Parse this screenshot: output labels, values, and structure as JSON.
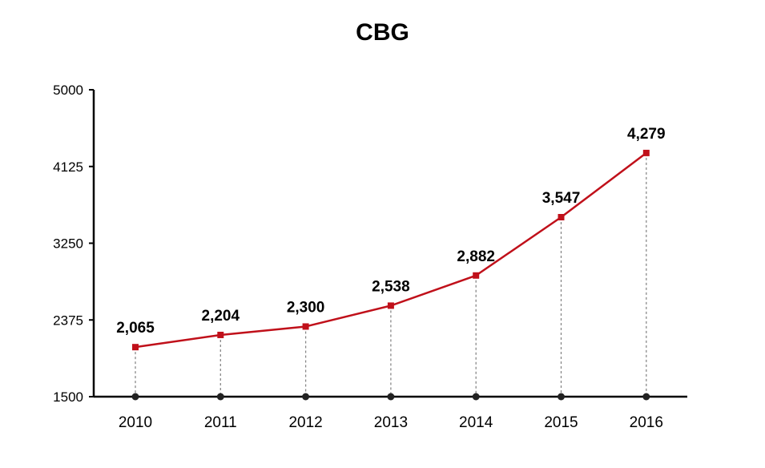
{
  "chart_data": {
    "type": "line",
    "title": "CBG",
    "xlabel": "",
    "ylabel": "",
    "categories": [
      "2010",
      "2011",
      "2012",
      "2013",
      "2014",
      "2015",
      "2016"
    ],
    "series": [
      {
        "values": [
          2065,
          2204,
          2300,
          2538,
          2882,
          3547,
          4279
        ],
        "data_labels": [
          "2,065",
          "2,204",
          "2,300",
          "2,538",
          "2,882",
          "3,547",
          "4,279"
        ]
      }
    ],
    "ylim": [
      1500,
      5000
    ],
    "y_ticks": [
      "5000",
      "4125",
      "3250",
      "2375",
      "1500"
    ],
    "grid": false,
    "legend": "none",
    "colors": {
      "line": "#c0101a",
      "marker": "#c0101a",
      "axis": "#000000",
      "drop_line": "#888888",
      "base_dot": "#222222",
      "text": "#000000"
    }
  }
}
